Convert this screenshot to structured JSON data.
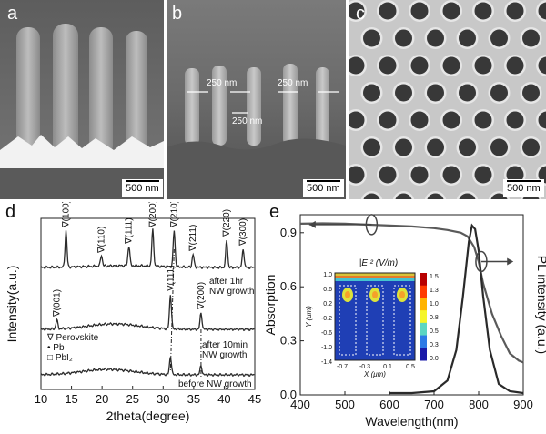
{
  "panels": {
    "a": {
      "label": "a",
      "scale": "500 nm"
    },
    "b": {
      "label": "b",
      "scale": "500 nm",
      "dims": [
        "250 nm",
        "250 nm",
        "250 nm"
      ]
    },
    "c": {
      "label": "c",
      "scale": "500 nm"
    },
    "d": {
      "label": "d"
    },
    "e": {
      "label": "e"
    }
  },
  "colors": {
    "xrd": "#2b2b2b",
    "absorption": "#5a5a5a",
    "pl": "#2a2a2a",
    "absorption_light": "#8a8a8a"
  },
  "chart_data": [
    {
      "type": "line",
      "panel": "d",
      "xlabel": "2theta(degree)",
      "ylabel": "Intensity(a.u.)",
      "xlim": [
        10,
        45
      ],
      "xticks": [
        10,
        15,
        20,
        25,
        30,
        35,
        40,
        45
      ],
      "series": [
        {
          "name": "after 1hr NW growth",
          "peaks": [
            {
              "x": 14.1,
              "label": "(100)"
            },
            {
              "x": 19.9,
              "label": "(110)"
            },
            {
              "x": 24.4,
              "label": "(111)"
            },
            {
              "x": 28.3,
              "label": "(200)"
            },
            {
              "x": 31.8,
              "label": "(210)"
            },
            {
              "x": 34.9,
              "label": "(211)"
            },
            {
              "x": 40.4,
              "label": "(220)"
            },
            {
              "x": 43.1,
              "label": "(300)"
            }
          ]
        },
        {
          "name": "after 10min NW growth",
          "peaks": [
            {
              "x": 12.6,
              "label": "(001)"
            },
            {
              "x": 31.2,
              "label": "(111)"
            },
            {
              "x": 36.2,
              "label": "(200)"
            }
          ]
        },
        {
          "name": "before NW growth",
          "peaks": [
            {
              "x": 31.2
            },
            {
              "x": 36.2
            }
          ]
        }
      ],
      "legend": [
        "Perovskite",
        "Pb",
        "PbI₂"
      ],
      "annotations": {
        "top": [
          "after 1hr",
          "NW growth"
        ],
        "mid": [
          "after 10min",
          "NW growth"
        ],
        "bottom": "before NW growth"
      }
    },
    {
      "type": "line",
      "panel": "e",
      "xlabel": "Wavelength(nm)",
      "ylabel": "Absorption",
      "y2label": "PL intensity (a.u.)",
      "xlim": [
        400,
        900
      ],
      "ylim": [
        0.0,
        1.0
      ],
      "xticks": [
        400,
        500,
        600,
        700,
        800,
        900
      ],
      "yticks": [
        0.0,
        0.3,
        0.6,
        0.9
      ],
      "series": [
        {
          "name": "Absorption",
          "x": [
            400,
            450,
            500,
            550,
            600,
            650,
            700,
            730,
            760,
            775,
            790,
            800,
            810,
            830,
            850,
            870,
            890,
            900
          ],
          "y": [
            0.95,
            0.952,
            0.95,
            0.945,
            0.94,
            0.935,
            0.925,
            0.915,
            0.9,
            0.88,
            0.82,
            0.74,
            0.62,
            0.45,
            0.33,
            0.23,
            0.19,
            0.18
          ]
        },
        {
          "name": "PL",
          "x": [
            600,
            650,
            700,
            730,
            750,
            765,
            778,
            785,
            792,
            800,
            810,
            825,
            845,
            870,
            900
          ],
          "y": [
            0.01,
            0.01,
            0.02,
            0.08,
            0.25,
            0.55,
            0.85,
            0.94,
            0.92,
            0.8,
            0.55,
            0.25,
            0.06,
            0.02,
            0.01
          ]
        }
      ],
      "inset": {
        "title": "|E|² (V/m)",
        "xlabel": "X (μm)",
        "ylabel": "Y (μm)",
        "xticks": [
          "-0.7",
          "-0.3",
          "0.1",
          "0.5"
        ],
        "yticks": [
          "1.0",
          "0.6",
          "0.2",
          "-0.2",
          "-0.6",
          "-1.0",
          "-1.4"
        ],
        "colorbar": [
          "1.5",
          "1.3",
          "1.0",
          "0.8",
          "0.5",
          "0.3",
          "0.0"
        ]
      }
    }
  ]
}
